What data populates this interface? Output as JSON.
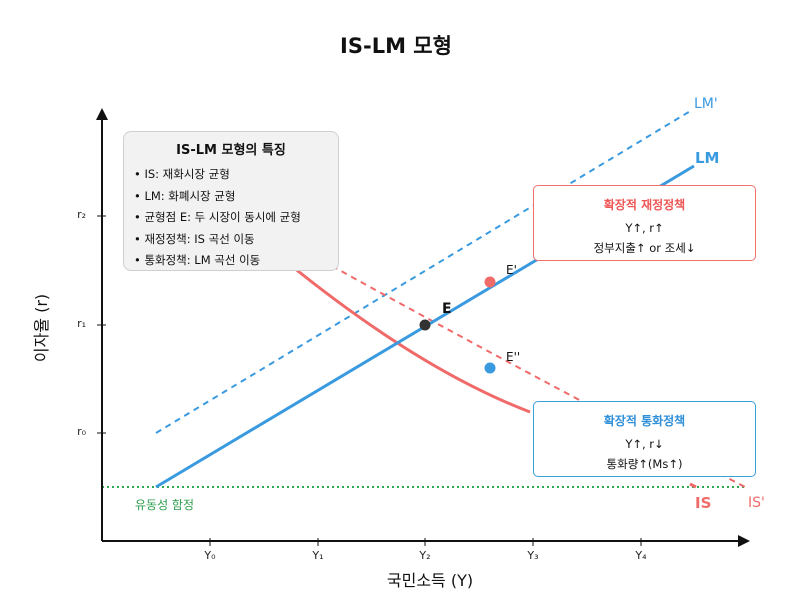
{
  "title": "IS-LM 모형",
  "axes": {
    "x_label": "국민소득 (Y)",
    "y_label": "이자율 (r)",
    "x_ticks": [
      "Y₀",
      "Y₁",
      "Y₂",
      "Y₃",
      "Y₄"
    ],
    "y_ticks": [
      "r₀",
      "r₁",
      "r₂"
    ]
  },
  "curves": {
    "is": "IS",
    "is_shifted": "IS'",
    "lm": "LM",
    "lm_shifted": "LM'"
  },
  "points": {
    "e": "E",
    "e_prime": "E'",
    "e_double_prime": "E''"
  },
  "info_box": {
    "title": "IS-LM 모형의 특징",
    "items": [
      "• IS: 재화시장 균형",
      "• LM: 화폐시장 균형",
      "• 균형점 E: 두 시장이 동시에 균형",
      "• 재정정책: IS 곡선 이동",
      "• 통화정책: LM 곡선 이동"
    ]
  },
  "fiscal_policy": {
    "title": "확장적 재정정책",
    "line1": "Y↑, r↑",
    "line2": "정부지출↑ or 조세↓"
  },
  "monetary_policy": {
    "title": "확장적 통화정책",
    "line1": "Y↑, r↓",
    "line2": "통화량↑(Ms↑)"
  },
  "liquidity_trap": "유동성 함정",
  "colors": {
    "lm": "#3a9ae0",
    "is": "#f06a6a",
    "trap": "#2eaa4e",
    "point_e": "#333333"
  }
}
